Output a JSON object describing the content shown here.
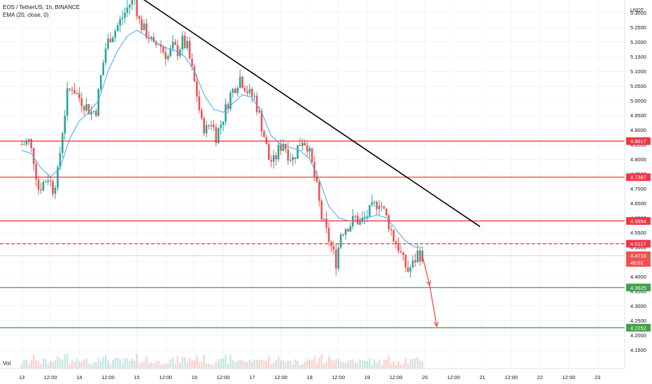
{
  "header": {
    "symbol_line": "EOS / TetherUS, 1h, BINANCE",
    "ema_line": "EMA (20, close, 0)",
    "currency": "USDT",
    "volume_label": "Vol"
  },
  "colors": {
    "up": "#26a69a",
    "down": "#ef5350",
    "ema": "#42a5f5",
    "trendline": "#000000",
    "resistance": "#f23645",
    "support": "#43a047",
    "arrow": "#f44336",
    "grid": "#f0f3fa",
    "axis_text": "#131722"
  },
  "chart_data": {
    "type": "candlestick",
    "title": "EOS / TetherUS, 1h, BINANCE",
    "ylim": [
      4.1,
      5.36
    ],
    "y_ticks": [
      "5.3000",
      "5.2500",
      "5.2000",
      "5.1500",
      "5.1000",
      "5.0500",
      "5.0000",
      "4.9500",
      "4.9000",
      "4.8500",
      "4.8000",
      "4.7500",
      "4.7000",
      "4.6500",
      "4.6000",
      "4.5500",
      "4.5000",
      "4.4500",
      "4.4000",
      "4.3500",
      "4.3000",
      "4.2500",
      "4.2000",
      "4.1500"
    ],
    "x_ticks": [
      "13",
      "12:00",
      "14",
      "12:00",
      "15",
      "12:00",
      "16",
      "12:00",
      "17",
      "12:00",
      "18",
      "12:00",
      "19",
      "12:00",
      "20",
      "12:00",
      "21",
      "12:00",
      "22",
      "12:00",
      "23"
    ],
    "x_tick_hours": [
      0,
      12,
      24,
      36,
      48,
      60,
      72,
      84,
      96,
      108,
      120,
      132,
      144,
      156,
      168,
      180,
      192,
      204,
      216,
      228,
      240
    ],
    "close_path": [
      [
        0,
        4.85
      ],
      [
        3,
        4.86
      ],
      [
        5,
        4.8
      ],
      [
        7,
        4.7
      ],
      [
        9,
        4.72
      ],
      [
        11,
        4.74
      ],
      [
        13,
        4.7
      ],
      [
        15,
        4.75
      ],
      [
        17,
        4.9
      ],
      [
        19,
        5.02
      ],
      [
        21,
        5.05
      ],
      [
        23,
        5.02
      ],
      [
        25,
        5.0
      ],
      [
        27,
        4.98
      ],
      [
        29,
        4.96
      ],
      [
        31,
        4.97
      ],
      [
        33,
        5.08
      ],
      [
        35,
        5.18
      ],
      [
        37,
        5.22
      ],
      [
        39,
        5.24
      ],
      [
        41,
        5.27
      ],
      [
        43,
        5.3
      ],
      [
        45,
        5.33
      ],
      [
        47,
        5.35
      ],
      [
        49,
        5.27
      ],
      [
        51,
        5.24
      ],
      [
        53,
        5.22
      ],
      [
        55,
        5.18
      ],
      [
        57,
        5.2
      ],
      [
        59,
        5.17
      ],
      [
        61,
        5.15
      ],
      [
        63,
        5.18
      ],
      [
        65,
        5.17
      ],
      [
        67,
        5.2
      ],
      [
        69,
        5.18
      ],
      [
        71,
        5.1
      ],
      [
        73,
        5.02
      ],
      [
        75,
        4.92
      ],
      [
        77,
        4.9
      ],
      [
        79,
        4.93
      ],
      [
        81,
        4.88
      ],
      [
        83,
        4.92
      ],
      [
        85,
        4.97
      ],
      [
        87,
        5.02
      ],
      [
        89,
        5.05
      ],
      [
        91,
        5.08
      ],
      [
        93,
        5.05
      ],
      [
        95,
        5.02
      ],
      [
        97,
        5.01
      ],
      [
        99,
        4.95
      ],
      [
        101,
        4.88
      ],
      [
        103,
        4.8
      ],
      [
        105,
        4.79
      ],
      [
        107,
        4.83
      ],
      [
        109,
        4.86
      ],
      [
        111,
        4.82
      ],
      [
        113,
        4.8
      ],
      [
        115,
        4.84
      ],
      [
        117,
        4.87
      ],
      [
        119,
        4.85
      ],
      [
        121,
        4.78
      ],
      [
        123,
        4.7
      ],
      [
        125,
        4.6
      ],
      [
        127,
        4.55
      ],
      [
        129,
        4.5
      ],
      [
        131,
        4.45
      ],
      [
        133,
        4.55
      ],
      [
        135,
        4.57
      ],
      [
        137,
        4.58
      ],
      [
        139,
        4.6
      ],
      [
        141,
        4.58
      ],
      [
        143,
        4.6
      ],
      [
        145,
        4.62
      ],
      [
        147,
        4.64
      ],
      [
        149,
        4.66
      ],
      [
        151,
        4.62
      ],
      [
        153,
        4.58
      ],
      [
        155,
        4.53
      ],
      [
        157,
        4.5
      ],
      [
        159,
        4.45
      ],
      [
        161,
        4.42
      ],
      [
        163,
        4.44
      ],
      [
        165,
        4.48
      ],
      [
        167,
        4.47
      ]
    ],
    "ema": {
      "name": "EMA (20, close, 0)",
      "points": [
        [
          0,
          4.83
        ],
        [
          4,
          4.82
        ],
        [
          8,
          4.77
        ],
        [
          12,
          4.74
        ],
        [
          16,
          4.77
        ],
        [
          20,
          4.87
        ],
        [
          24,
          4.93
        ],
        [
          28,
          4.96
        ],
        [
          32,
          5.0
        ],
        [
          36,
          5.1
        ],
        [
          40,
          5.17
        ],
        [
          44,
          5.22
        ],
        [
          48,
          5.24
        ],
        [
          52,
          5.22
        ],
        [
          56,
          5.2
        ],
        [
          60,
          5.18
        ],
        [
          64,
          5.17
        ],
        [
          68,
          5.15
        ],
        [
          72,
          5.1
        ],
        [
          76,
          5.02
        ],
        [
          80,
          4.97
        ],
        [
          84,
          4.96
        ],
        [
          88,
          4.99
        ],
        [
          92,
          5.02
        ],
        [
          96,
          5.01
        ],
        [
          100,
          4.96
        ],
        [
          104,
          4.88
        ],
        [
          108,
          4.85
        ],
        [
          112,
          4.84
        ],
        [
          116,
          4.83
        ],
        [
          120,
          4.8
        ],
        [
          124,
          4.73
        ],
        [
          128,
          4.64
        ],
        [
          132,
          4.6
        ],
        [
          136,
          4.59
        ],
        [
          140,
          4.59
        ],
        [
          144,
          4.6
        ],
        [
          148,
          4.61
        ],
        [
          152,
          4.6
        ],
        [
          156,
          4.56
        ],
        [
          160,
          4.52
        ],
        [
          164,
          4.5
        ],
        [
          167,
          4.5
        ]
      ]
    },
    "trendline": {
      "start": [
        48,
        5.36
      ],
      "end": [
        191,
        4.57
      ]
    },
    "horizontal_levels": [
      {
        "price": 4.8617,
        "label": "4.8617",
        "kind": "resistance",
        "style": "solid"
      },
      {
        "price": 4.7387,
        "label": "4.7387",
        "kind": "resistance",
        "style": "solid"
      },
      {
        "price": 4.5894,
        "label": "4.5894",
        "kind": "resistance",
        "style": "solid"
      },
      {
        "price": 4.5117,
        "label": "4.5117",
        "kind": "resistance",
        "style": "dashed"
      },
      {
        "price": 4.3625,
        "label": "4.3625",
        "kind": "support",
        "style": "solid"
      },
      {
        "price": 4.2252,
        "label": "4.2252",
        "kind": "support",
        "style": "solid"
      }
    ],
    "last_price": {
      "price": 4.471,
      "label": "4.4710",
      "countdown": "46:01"
    },
    "top_price_tag": "5.3601",
    "projection_arrows": [
      {
        "from": [
          167,
          4.47
        ],
        "to": [
          170,
          4.37
        ]
      },
      {
        "from": [
          170,
          4.37
        ],
        "to": [
          173,
          4.23
        ]
      }
    ]
  }
}
